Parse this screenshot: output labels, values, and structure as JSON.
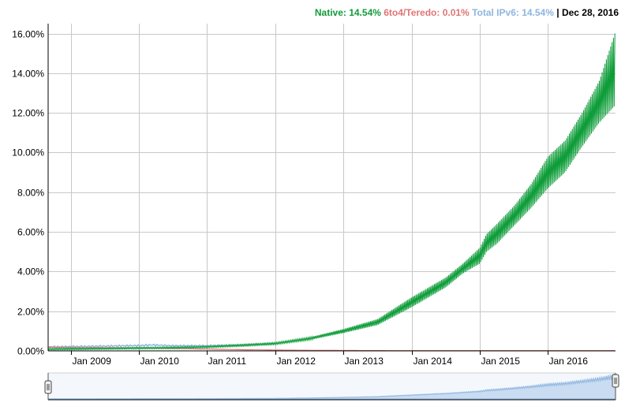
{
  "legend": {
    "native_label": "Native: 14.54%",
    "teredo_label": "6to4/Teredo: 0.01%",
    "total_label": "Total IPv6: 14.54%",
    "separator": " | ",
    "date": "Dec 28, 2016"
  },
  "colors": {
    "native": "#0f9d3a",
    "teredo": "#e07070",
    "total": "#8fb5e0",
    "grid": "#c8c8c8"
  },
  "chart_data": {
    "type": "line",
    "title": "",
    "xlabel": "",
    "ylabel": "",
    "xlim": [
      2008.67,
      2016.99
    ],
    "ylim": [
      0,
      16.5
    ],
    "yticks": [
      {
        "value": 0,
        "label": "0.00%"
      },
      {
        "value": 2,
        "label": "2.00%"
      },
      {
        "value": 4,
        "label": "4.00%"
      },
      {
        "value": 6,
        "label": "6.00%"
      },
      {
        "value": 8,
        "label": "8.00%"
      },
      {
        "value": 10,
        "label": "10.00%"
      },
      {
        "value": 12,
        "label": "12.00%"
      },
      {
        "value": 14,
        "label": "14.00%"
      },
      {
        "value": 16,
        "label": "16.00%"
      }
    ],
    "xticks": [
      {
        "value": 2009,
        "label": "Jan 2009"
      },
      {
        "value": 2010,
        "label": "Jan 2010"
      },
      {
        "value": 2011,
        "label": "Jan 2011"
      },
      {
        "value": 2012,
        "label": "Jan 2012"
      },
      {
        "value": 2013,
        "label": "Jan 2013"
      },
      {
        "value": 2014,
        "label": "Jan 2014"
      },
      {
        "value": 2015,
        "label": "Jan 2015"
      },
      {
        "value": 2016,
        "label": "Jan 2016"
      }
    ],
    "series": [
      {
        "name": "Native",
        "x": [
          2008.67,
          2009.0,
          2009.5,
          2010.0,
          2010.5,
          2011.0,
          2011.5,
          2012.0,
          2012.5,
          2013.0,
          2013.5,
          2014.0,
          2014.25,
          2014.5,
          2014.75,
          2015.0,
          2015.1,
          2015.25,
          2015.5,
          2015.75,
          2016.0,
          2016.25,
          2016.5,
          2016.75,
          2016.99
        ],
        "low": [
          0.05,
          0.06,
          0.08,
          0.1,
          0.12,
          0.16,
          0.23,
          0.32,
          0.55,
          0.9,
          1.3,
          2.2,
          2.7,
          3.2,
          3.9,
          4.4,
          5.0,
          5.4,
          6.3,
          7.2,
          8.2,
          9.0,
          10.3,
          11.5,
          12.4
        ],
        "high": [
          0.12,
          0.14,
          0.15,
          0.18,
          0.2,
          0.24,
          0.32,
          0.42,
          0.68,
          1.1,
          1.6,
          2.7,
          3.2,
          3.7,
          4.4,
          5.2,
          5.9,
          6.4,
          7.3,
          8.4,
          9.8,
          10.6,
          12.0,
          13.6,
          16.1
        ]
      },
      {
        "name": "6to4/Teredo",
        "x": [
          2008.67,
          2009.0,
          2009.5,
          2010.0,
          2010.5,
          2011.0,
          2011.5,
          2012.0,
          2013.0,
          2014.0,
          2015.0,
          2016.0,
          2016.99
        ],
        "values": [
          0.18,
          0.17,
          0.16,
          0.15,
          0.12,
          0.09,
          0.06,
          0.04,
          0.02,
          0.01,
          0.01,
          0.01,
          0.01
        ]
      },
      {
        "name": "Total IPv6",
        "x": [
          2008.67,
          2009.0,
          2009.5,
          2010.0,
          2010.2,
          2010.5,
          2011.0,
          2011.5,
          2012.0
        ],
        "values": [
          0.2,
          0.22,
          0.24,
          0.27,
          0.3,
          0.26,
          0.26,
          0.3,
          0.36
        ]
      }
    ]
  }
}
